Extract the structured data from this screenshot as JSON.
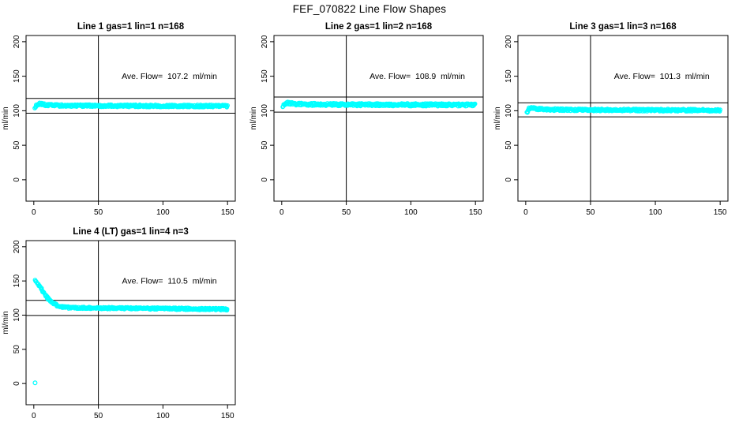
{
  "main_title": "FEF_070822  Line Flow Shapes",
  "colors": {
    "points": "#00ffff",
    "axis": "#000000",
    "background": "#ffffff"
  },
  "chart_data": [
    {
      "type": "scatter",
      "title": "Line 1 gas=1 lin=1 n=168",
      "annotation": "Ave. Flow=  107.2  ml/min",
      "ave_flow_ml_min": 107.2,
      "ylabel": "ml/min",
      "x_ticks": [
        0,
        50,
        100,
        150
      ],
      "y_ticks": [
        0,
        50,
        100,
        150,
        200
      ],
      "xlim": [
        -6,
        156
      ],
      "ylim": [
        -31,
        209
      ],
      "vline_x": 50,
      "hlines": {
        "upper": 117.9,
        "lower": 96.5
      },
      "grid": false,
      "marker": "open-circle",
      "band_halfwidth": 1.7,
      "series": [
        [
          1,
          103
        ],
        [
          2,
          107.5
        ],
        [
          3,
          109.5
        ],
        [
          5,
          110
        ],
        [
          7,
          109
        ],
        [
          10,
          108.2
        ],
        [
          15,
          107.7
        ],
        [
          30,
          107.4
        ],
        [
          60,
          107.2
        ],
        [
          100,
          107.0
        ],
        [
          150,
          106.8
        ]
      ],
      "extra_points": []
    },
    {
      "type": "scatter",
      "title": "Line 2 gas=1 lin=2 n=168",
      "annotation": "Ave. Flow=  108.9  ml/min",
      "ave_flow_ml_min": 108.9,
      "ylabel": "ml/min",
      "x_ticks": [
        0,
        50,
        100,
        150
      ],
      "y_ticks": [
        0,
        50,
        100,
        150,
        200
      ],
      "xlim": [
        -6,
        156
      ],
      "ylim": [
        -31,
        209
      ],
      "vline_x": 50,
      "hlines": {
        "upper": 119.8,
        "lower": 98.0
      },
      "grid": false,
      "marker": "open-circle",
      "band_halfwidth": 2.0,
      "series": [
        [
          1,
          105
        ],
        [
          2,
          109
        ],
        [
          4,
          111.5
        ],
        [
          6,
          111
        ],
        [
          9,
          110
        ],
        [
          14,
          109.4
        ],
        [
          30,
          109
        ],
        [
          60,
          108.8
        ],
        [
          100,
          108.6
        ],
        [
          150,
          108.4
        ]
      ],
      "extra_points": []
    },
    {
      "type": "scatter",
      "title": "Line 3 gas=1 lin=3 n=168",
      "annotation": "Ave. Flow=  101.3  ml/min",
      "ave_flow_ml_min": 101.3,
      "ylabel": "ml/min",
      "x_ticks": [
        0,
        50,
        100,
        150
      ],
      "y_ticks": [
        0,
        50,
        100,
        150,
        200
      ],
      "xlim": [
        -6,
        156
      ],
      "ylim": [
        -31,
        209
      ],
      "vline_x": 50,
      "hlines": {
        "upper": 111.4,
        "lower": 91.2
      },
      "grid": false,
      "marker": "open-circle",
      "band_halfwidth": 1.7,
      "series": [
        [
          1,
          96.5
        ],
        [
          2,
          101
        ],
        [
          3,
          103.5
        ],
        [
          5,
          104
        ],
        [
          8,
          103
        ],
        [
          12,
          102.2
        ],
        [
          20,
          101.6
        ],
        [
          40,
          101.3
        ],
        [
          80,
          101.0
        ],
        [
          150,
          100.7
        ]
      ],
      "extra_points": []
    },
    {
      "type": "scatter",
      "title": "Line 4 (LT) gas=1 lin=4 n=3",
      "annotation": "Ave. Flow=  110.5  ml/min",
      "ave_flow_ml_min": 110.5,
      "ylabel": "ml/min",
      "x_ticks": [
        0,
        50,
        100,
        150
      ],
      "y_ticks": [
        0,
        50,
        100,
        150,
        200
      ],
      "xlim": [
        -6,
        156
      ],
      "ylim": [
        -31,
        209
      ],
      "vline_x": 50,
      "hlines": {
        "upper": 121.6,
        "lower": 99.5
      },
      "grid": false,
      "marker": "open-circle",
      "band_halfwidth": 1.5,
      "series": [
        [
          1,
          150
        ],
        [
          2,
          148
        ],
        [
          3,
          146
        ],
        [
          4,
          143.5
        ],
        [
          5,
          140.5
        ],
        [
          6,
          137.5
        ],
        [
          7,
          134.5
        ],
        [
          8,
          131.5
        ],
        [
          9,
          129
        ],
        [
          10,
          126.5
        ],
        [
          12,
          122.5
        ],
        [
          14,
          119
        ],
        [
          16,
          116.5
        ],
        [
          18,
          114.5
        ],
        [
          20,
          113
        ],
        [
          23,
          111.8
        ],
        [
          26,
          111.2
        ],
        [
          30,
          110.8
        ],
        [
          40,
          110.6
        ],
        [
          60,
          110.3
        ],
        [
          80,
          110.0
        ],
        [
          100,
          109.6
        ],
        [
          120,
          109.2
        ],
        [
          150,
          108.6
        ]
      ],
      "extra_points": [
        [
          1,
          1
        ]
      ]
    }
  ]
}
